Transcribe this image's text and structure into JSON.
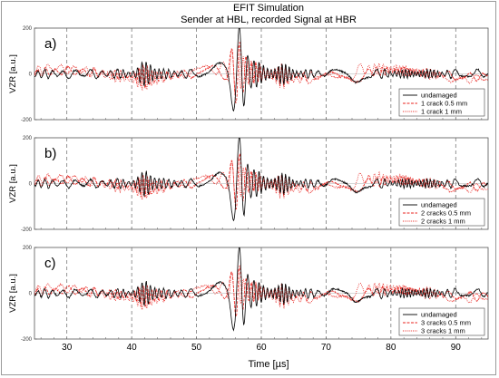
{
  "figure": {
    "title_line1": "EFIT Simulation",
    "title_line2": "Sender at HBL, recorded Signal at HBR",
    "xlabel": "Time [µs]"
  },
  "colors": {
    "undamaged": "#000000",
    "damaged_a": "#e8231e",
    "damaged_b": "#e8231e",
    "grid": "#666666"
  },
  "chart_data": [
    {
      "type": "line",
      "panel_label": "a)",
      "ylabel": "VZR [a.u.]",
      "xlim": [
        25,
        95
      ],
      "ylim": [
        -200,
        200
      ],
      "xticks": [
        30,
        40,
        50,
        60,
        70,
        80,
        90
      ],
      "yticks": [
        200,
        0,
        -200
      ],
      "grid": "dashed vertical at x ticks",
      "legend_position": "bottom-right",
      "legend": [
        "undamaged",
        "1 crack 0.5 mm",
        "1 crack 1 mm"
      ],
      "series": [
        {
          "name": "undamaged",
          "amp_peak": 190,
          "peak_x": 56.5
        },
        {
          "name": "1 crack 0.5 mm",
          "amp_peak": 125,
          "peak_x": 56.5
        },
        {
          "name": "1 crack 1 mm",
          "amp_peak": 95,
          "peak_x": 56.5
        }
      ]
    },
    {
      "type": "line",
      "panel_label": "b)",
      "ylabel": "VZR [a.u.]",
      "xlim": [
        25,
        95
      ],
      "ylim": [
        -200,
        200
      ],
      "xticks": [
        30,
        40,
        50,
        60,
        70,
        80,
        90
      ],
      "yticks": [
        200,
        0,
        -200
      ],
      "grid": "dashed vertical at x ticks",
      "legend_position": "bottom-right",
      "legend": [
        "undamaged",
        "2 cracks 0.5 mm",
        "2 cracks 1 mm"
      ],
      "series": [
        {
          "name": "undamaged",
          "amp_peak": 190,
          "peak_x": 56.5
        },
        {
          "name": "2 cracks 0.5 mm",
          "amp_peak": 110,
          "peak_x": 56.5
        },
        {
          "name": "2 cracks 1 mm",
          "amp_peak": 80,
          "peak_x": 56.5
        }
      ]
    },
    {
      "type": "line",
      "panel_label": "c)",
      "ylabel": "VZR [a.u.]",
      "xlim": [
        25,
        95
      ],
      "ylim": [
        -200,
        200
      ],
      "xticks": [
        30,
        40,
        50,
        60,
        70,
        80,
        90
      ],
      "yticks": [
        200,
        0,
        -200
      ],
      "grid": "dashed vertical at x ticks",
      "legend_position": "bottom-right",
      "legend": [
        "undamaged",
        "3 cracks 0.5 mm",
        "3 cracks 1 mm"
      ],
      "series": [
        {
          "name": "undamaged",
          "amp_peak": 190,
          "peak_x": 56.5
        },
        {
          "name": "3 cracks 0.5 mm",
          "amp_peak": 100,
          "peak_x": 56.5
        },
        {
          "name": "3 cracks 1 mm",
          "amp_peak": 70,
          "peak_x": 56.5
        }
      ]
    }
  ]
}
